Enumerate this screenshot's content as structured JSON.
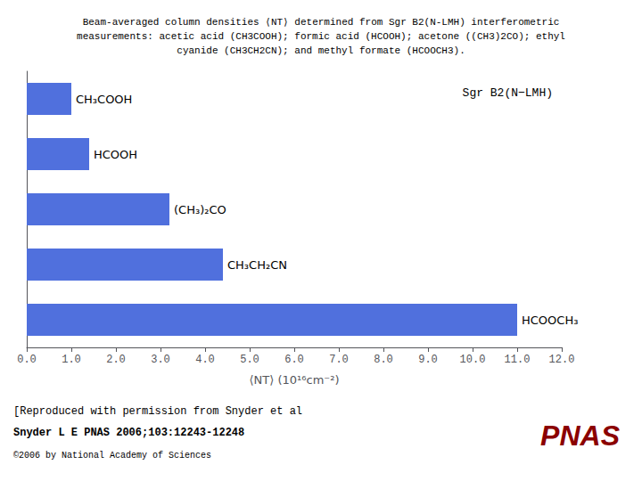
{
  "chart_data": {
    "type": "bar",
    "orientation": "horizontal",
    "title": "Beam-averaged column densities ⟨NT⟩ determined from Sgr B2(N-LMH) interferometric\nmeasurements: acetic acid (CH3COOH); formic acid (HCOOH); acetone ((CH3)2CO); ethyl\ncyanide (CH3CH2CN); and methyl formate (HCOOCH3).",
    "xlabel": "⟨NT⟩ (10¹⁶cm⁻²)",
    "categories": [
      "CH₃COOH",
      "HCOOH",
      "(CH₃)₂CO",
      "CH₃CH₂CN",
      "HCOOCH₃"
    ],
    "values": [
      1.0,
      1.4,
      3.2,
      4.4,
      11.0
    ],
    "xlim": [
      0,
      12.0
    ],
    "xticks": [
      {
        "value": 0.0,
        "label": "0.0"
      },
      {
        "value": 1.0,
        "label": "1.0"
      },
      {
        "value": 2.0,
        "label": "2.0"
      },
      {
        "value": 3.0,
        "label": "3.0"
      },
      {
        "value": 4.0,
        "label": "4.0"
      },
      {
        "value": 5.0,
        "label": "5.0"
      },
      {
        "value": 6.0,
        "label": "6.0"
      },
      {
        "value": 7.0,
        "label": "7.0"
      },
      {
        "value": 8.0,
        "label": "8.0"
      },
      {
        "value": 9.0,
        "label": "9.0"
      },
      {
        "value": 10.0,
        "label": "10.0"
      },
      {
        "value": 11.0,
        "label": "11.0"
      },
      {
        "value": 12.0,
        "label": "12.0"
      }
    ],
    "grid": false,
    "tick_labels": "x",
    "annotations": [
      "Sgr B2(N−LMH)",
      "[Reproduced with permission from Snyder et al",
      "Snyder L E PNAS 2006;103:12243-12248",
      "©2006 by National Academy of Sciences",
      "PNAS"
    ]
  }
}
